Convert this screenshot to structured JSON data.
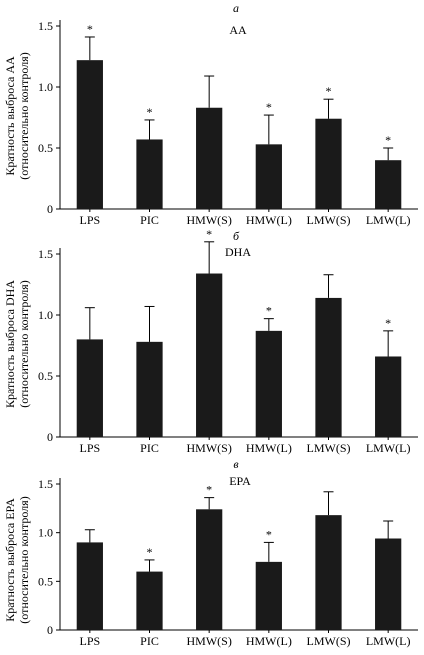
{
  "chart_data": [
    {
      "type": "bar",
      "panel_letter": "а",
      "title": "AA",
      "ylabel_line1": "Кратность выброса AA",
      "ylabel_line2": "(относительно контроля)",
      "xlabel": "",
      "categories": [
        "LPS",
        "PIC",
        "HMW(S)",
        "HMW(L)",
        "LMW(S)",
        "LMW(L)"
      ],
      "values": [
        1.22,
        0.57,
        0.83,
        0.53,
        0.74,
        0.4
      ],
      "errors": [
        0.19,
        0.16,
        0.26,
        0.24,
        0.16,
        0.1
      ],
      "significant": [
        true,
        true,
        false,
        true,
        true,
        true
      ],
      "significance_mark": "*",
      "ylim": [
        0,
        1.5
      ],
      "yticks": [
        "0",
        "0.5",
        "1.0",
        "1.5"
      ],
      "ytick_values": [
        0,
        0.5,
        1.0,
        1.5
      ],
      "grid": false,
      "bar_color": "#1a1a1a"
    },
    {
      "type": "bar",
      "panel_letter": "б",
      "title": "DHA",
      "ylabel_line1": "Кратность выброса DHA",
      "ylabel_line2": "(относительно контроля)",
      "xlabel": "",
      "categories": [
        "LPS",
        "PIC",
        "HMW(S)",
        "HMW(L)",
        "LMW(S)",
        "LMW(L)"
      ],
      "values": [
        0.8,
        0.78,
        1.34,
        0.87,
        1.14,
        0.66
      ],
      "errors": [
        0.26,
        0.29,
        0.26,
        0.1,
        0.19,
        0.21
      ],
      "significant": [
        false,
        false,
        true,
        true,
        false,
        true
      ],
      "significance_mark": "*",
      "ylim": [
        0,
        1.5
      ],
      "yticks": [
        "0",
        "0.5",
        "1.0",
        "1.5"
      ],
      "ytick_values": [
        0,
        0.5,
        1.0,
        1.5
      ],
      "grid": false,
      "bar_color": "#1a1a1a"
    },
    {
      "type": "bar",
      "panel_letter": "в",
      "title": "EPA",
      "ylabel_line1": "Кратность выброса EPA",
      "ylabel_line2": "(относительно контроля)",
      "xlabel": "",
      "categories": [
        "LPS",
        "PIC",
        "HMW(S)",
        "HMW(L)",
        "LMW(S)",
        "LMW(L)"
      ],
      "values": [
        0.9,
        0.6,
        1.24,
        0.7,
        1.18,
        0.94
      ],
      "errors": [
        0.13,
        0.12,
        0.12,
        0.2,
        0.24,
        0.18
      ],
      "significant": [
        false,
        true,
        true,
        true,
        false,
        false
      ],
      "significance_mark": "*",
      "ylim": [
        0,
        1.5
      ],
      "yticks": [
        "0",
        "0.5",
        "1.0",
        "1.5"
      ],
      "ytick_values": [
        0,
        0.5,
        1.0,
        1.5
      ],
      "grid": false,
      "bar_color": "#1a1a1a"
    }
  ]
}
